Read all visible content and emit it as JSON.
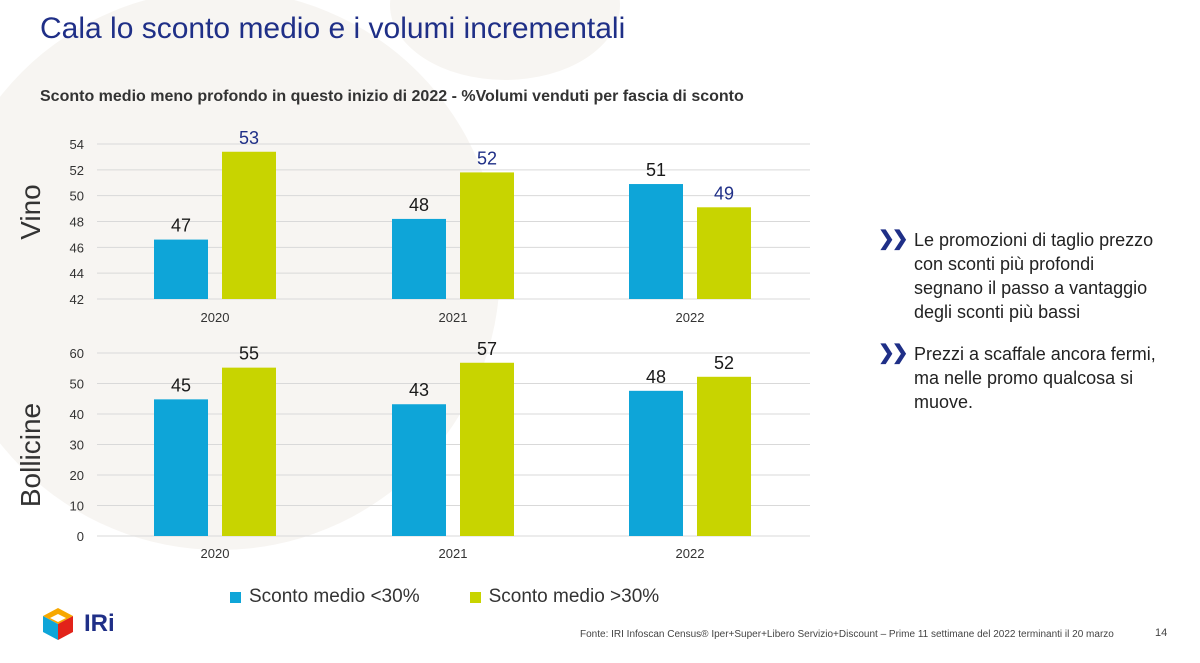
{
  "title": "Cala lo sconto medio e i volumi incrementali",
  "subtitle": "Sconto medio meno profondo  in questo inizio di 2022 - %Volumi venduti per fascia di sconto",
  "colors": {
    "series1": "#0ea5d8",
    "series2": "#c8d400",
    "title": "#1f2f87"
  },
  "chart_data": [
    {
      "type": "bar",
      "panel_label": "Vino",
      "categories": [
        "2020",
        "2021",
        "2022"
      ],
      "series": [
        {
          "name": "Sconto medio <30%",
          "values": [
            47,
            48,
            51
          ],
          "display_values": [
            46.6,
            48.2,
            50.9
          ]
        },
        {
          "name": "Sconto medio >30%",
          "values": [
            53,
            52,
            49
          ],
          "display_values": [
            53.4,
            51.8,
            49.1
          ]
        }
      ],
      "ylim": [
        42,
        54
      ],
      "yticks": [
        42,
        44,
        46,
        48,
        50,
        52,
        54
      ],
      "grid": true
    },
    {
      "type": "bar",
      "panel_label": "Bollicine",
      "categories": [
        "2020",
        "2021",
        "2022"
      ],
      "series": [
        {
          "name": "Sconto medio <30%",
          "values": [
            45,
            43,
            48
          ],
          "display_values": [
            44.8,
            43.2,
            47.6
          ]
        },
        {
          "name": "Sconto medio >30%",
          "values": [
            55,
            57,
            52
          ],
          "display_values": [
            55.2,
            56.8,
            52.2
          ]
        }
      ],
      "ylim": [
        0,
        60
      ],
      "yticks": [
        0,
        10,
        20,
        30,
        40,
        50,
        60
      ],
      "grid": true
    }
  ],
  "legend": [
    {
      "label": "Sconto medio <30%"
    },
    {
      "label": "Sconto medio >30%"
    }
  ],
  "bullets": [
    {
      "icon": "double-chevron-right-icon",
      "text": "Le promozioni di taglio prezzo con sconti più profondi segnano il passo a vantaggio degli sconti più bassi"
    },
    {
      "icon": "double-chevron-right-icon",
      "text": "Prezzi a scaffale ancora fermi, ma nelle promo qualcosa si muove."
    }
  ],
  "logo": {
    "text": "IRi"
  },
  "source": "Fonte: IRI  Infoscan Census®  Iper+Super+Libero Servizio+Discount – Prime 11 settimane del 2022 terminanti il 20 marzo",
  "page_number": "14"
}
